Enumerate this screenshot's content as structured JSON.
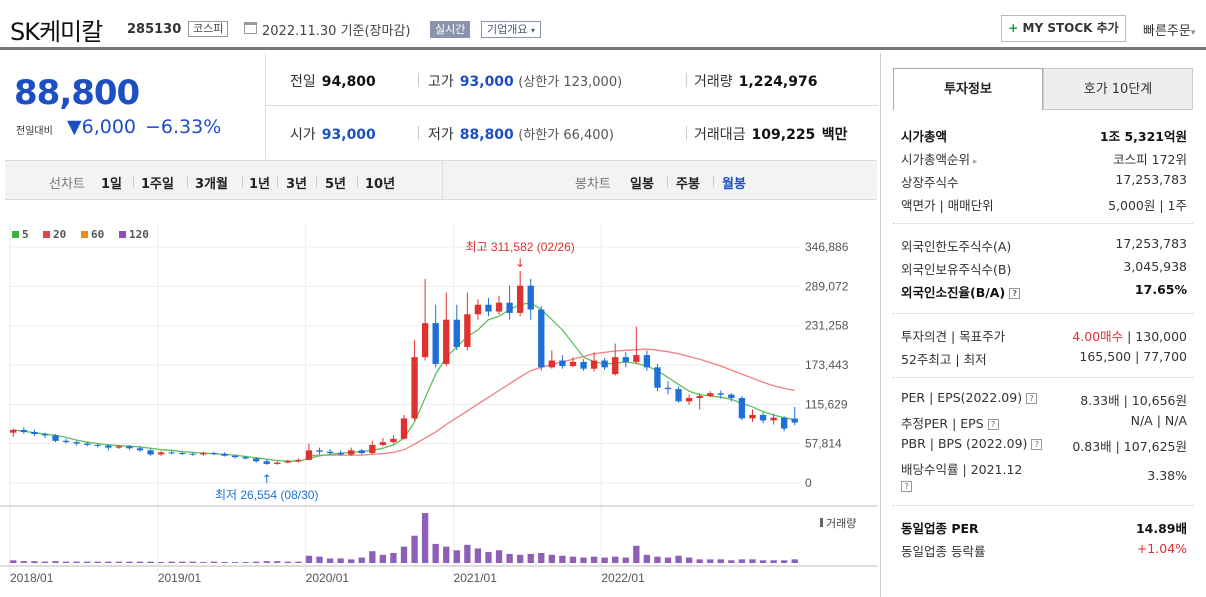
{
  "header": {
    "title": "SK케미칼",
    "code": "285130",
    "market": "코스피",
    "date": "2022.11.30 기준(장마감)",
    "realtime": "실시간",
    "overview": "기업개요",
    "mystock_label": "MY STOCK 추가",
    "quick_order": "빠른주문"
  },
  "price": {
    "current": "88,800",
    "compare_label": "전일대비",
    "change": "▼6,000",
    "change_pct": "−6.33%"
  },
  "quote": {
    "prev_label": "전일",
    "prev": "94,800",
    "high_label": "고가",
    "high": "93,000",
    "upper_limit": "(상한가 123,000)",
    "volume_label": "거래량",
    "volume": "1,224,976",
    "open_label": "시가",
    "open": "93,000",
    "low_label": "저가",
    "low": "88,800",
    "lower_limit": "(하한가 66,400)",
    "amount_label": "거래대금",
    "amount": "109,225",
    "amount_unit": "백만"
  },
  "periods": {
    "line_label": "선차트",
    "items": [
      "1일",
      "1주일",
      "3개월",
      "1년",
      "3년",
      "5년",
      "10년"
    ],
    "candle_label": "봉차트",
    "candle_items": [
      "일봉",
      "주봉",
      "월봉"
    ],
    "selected": "월봉"
  },
  "legend": [
    {
      "label": "5",
      "color": "#3cb33c"
    },
    {
      "label": "20",
      "color": "#e64545"
    },
    {
      "label": "60",
      "color": "#f08c1a"
    },
    {
      "label": "120",
      "color": "#8a4fc0"
    }
  ],
  "annotations": {
    "high": "최고 311,582 (02/26)",
    "low": "최저 26,554 (08/30)",
    "volume_label": "거래량"
  },
  "chart_data": {
    "type": "candlestick",
    "x_ticks": [
      "2018/01",
      "2019/01",
      "2020/01",
      "2021/01",
      "2022/01"
    ],
    "y_ticks": [
      0,
      57814,
      115629,
      173443,
      231258,
      289072,
      346886
    ],
    "ylim": [
      0,
      346886
    ],
    "colors": {
      "up": "#e03131",
      "down": "#1e6fd8",
      "ma5": "#5cc15c",
      "ma20": "#f08080",
      "volume": "#8e5fb8"
    },
    "candles": [
      [
        74000,
        78000,
        68000,
        80000
      ],
      [
        78000,
        75000,
        72000,
        82000
      ],
      [
        75000,
        72000,
        69000,
        78000
      ],
      [
        72000,
        70000,
        66000,
        74000
      ],
      [
        70000,
        62000,
        60000,
        72000
      ],
      [
        62000,
        60000,
        58000,
        65000
      ],
      [
        60000,
        58000,
        55000,
        62000
      ],
      [
        58000,
        56000,
        54000,
        60000
      ],
      [
        56000,
        55000,
        52000,
        58000
      ],
      [
        55000,
        52000,
        48000,
        57000
      ],
      [
        52000,
        54000,
        50000,
        56000
      ],
      [
        54000,
        51000,
        49000,
        56000
      ],
      [
        51000,
        48000,
        46000,
        54000
      ],
      [
        48000,
        42000,
        40000,
        50000
      ],
      [
        42000,
        45000,
        40000,
        47000
      ],
      [
        45000,
        44000,
        42000,
        48000
      ],
      [
        44000,
        43000,
        41000,
        46000
      ],
      [
        43000,
        42000,
        40000,
        45000
      ],
      [
        42000,
        44000,
        40000,
        46000
      ],
      [
        44000,
        43000,
        41000,
        46000
      ],
      [
        43000,
        40000,
        39000,
        45000
      ],
      [
        40000,
        38000,
        36000,
        42000
      ],
      [
        38000,
        36000,
        35000,
        40000
      ],
      [
        36000,
        32000,
        30000,
        38000
      ],
      [
        32000,
        28000,
        26554,
        34000
      ],
      [
        28000,
        30000,
        27000,
        32000
      ],
      [
        30000,
        32000,
        29000,
        34000
      ],
      [
        32000,
        34000,
        30000,
        36000
      ],
      [
        34000,
        48000,
        33000,
        58000
      ],
      [
        48000,
        46000,
        42000,
        52000
      ],
      [
        46000,
        44000,
        42000,
        50000
      ],
      [
        44000,
        42000,
        40000,
        48000
      ],
      [
        42000,
        48000,
        40000,
        52000
      ],
      [
        48000,
        44000,
        42000,
        50000
      ],
      [
        44000,
        56000,
        43000,
        62000
      ],
      [
        56000,
        60000,
        54000,
        66000
      ],
      [
        60000,
        65000,
        58000,
        70000
      ],
      [
        65000,
        95000,
        64000,
        100000
      ],
      [
        95000,
        185000,
        92000,
        210000
      ],
      [
        185000,
        235000,
        180000,
        300000
      ],
      [
        235000,
        175000,
        170000,
        262000
      ],
      [
        175000,
        240000,
        172000,
        280000
      ],
      [
        240000,
        200000,
        195000,
        262000
      ],
      [
        200000,
        248000,
        195000,
        280000
      ],
      [
        248000,
        262000,
        240000,
        270000
      ],
      [
        262000,
        252000,
        245000,
        272000
      ],
      [
        252000,
        265000,
        248000,
        275000
      ],
      [
        265000,
        250000,
        240000,
        290000
      ],
      [
        250000,
        290000,
        245000,
        311582
      ],
      [
        290000,
        255000,
        240000,
        300000
      ],
      [
        255000,
        170000,
        165000,
        260000
      ],
      [
        170000,
        180000,
        168000,
        195000
      ],
      [
        180000,
        172000,
        168000,
        188000
      ],
      [
        172000,
        178000,
        170000,
        185000
      ],
      [
        178000,
        168000,
        165000,
        182000
      ],
      [
        168000,
        180000,
        164000,
        192000
      ],
      [
        180000,
        170000,
        166000,
        184000
      ],
      [
        160000,
        185000,
        158000,
        205000
      ],
      [
        185000,
        178000,
        170000,
        192000
      ],
      [
        178000,
        188000,
        175000,
        230000
      ],
      [
        188000,
        170000,
        165000,
        195000
      ],
      [
        170000,
        140000,
        135000,
        175000
      ],
      [
        140000,
        138000,
        130000,
        150000
      ],
      [
        138000,
        120000,
        118000,
        142000
      ],
      [
        120000,
        125000,
        115000,
        130000
      ],
      [
        125000,
        128000,
        108000,
        132000
      ],
      [
        128000,
        132000,
        126000,
        135000
      ],
      [
        132000,
        130000,
        124000,
        136000
      ],
      [
        130000,
        125000,
        120000,
        132000
      ],
      [
        125000,
        95000,
        92000,
        128000
      ],
      [
        95000,
        100000,
        90000,
        108000
      ],
      [
        100000,
        92000,
        88000,
        104000
      ],
      [
        92000,
        96000,
        86000,
        102000
      ],
      [
        96000,
        80000,
        76000,
        98000
      ],
      [
        94800,
        88800,
        85000,
        112000
      ]
    ],
    "ma5": [
      78000,
      76000,
      74000,
      72000,
      70000,
      67000,
      63000,
      60000,
      58000,
      56000,
      55000,
      54000,
      53000,
      51000,
      49000,
      48000,
      46000,
      45000,
      44000,
      43000,
      42000,
      41000,
      39000,
      37000,
      35000,
      33000,
      32000,
      32000,
      36000,
      40000,
      42000,
      44000,
      45000,
      46000,
      48000,
      51000,
      56000,
      66000,
      90000,
      125000,
      160000,
      185000,
      200000,
      215000,
      225000,
      240000,
      245000,
      255000,
      262000,
      265000,
      255000,
      240000,
      225000,
      205000,
      185000,
      178000,
      175000,
      176000,
      178000,
      176000,
      172000,
      165000,
      155000,
      145000,
      135000,
      130000,
      128000,
      126000,
      123000,
      117000,
      112000,
      105000,
      100000,
      96000,
      93000
    ],
    "ma20": [
      null,
      null,
      null,
      null,
      null,
      null,
      null,
      null,
      null,
      null,
      null,
      null,
      null,
      null,
      null,
      null,
      null,
      null,
      null,
      null,
      null,
      null,
      null,
      null,
      null,
      null,
      null,
      null,
      40000,
      41000,
      41000,
      41000,
      41000,
      41000,
      42000,
      43000,
      45000,
      49000,
      57000,
      66000,
      75000,
      86000,
      96000,
      106000,
      116000,
      126000,
      136000,
      146000,
      156000,
      165000,
      170000,
      174000,
      178000,
      182000,
      186000,
      190000,
      192000,
      194000,
      195000,
      196000,
      197000,
      195000,
      193000,
      190000,
      186000,
      182000,
      177000,
      172000,
      166000,
      160000,
      154000,
      148000,
      143000,
      139000,
      136000
    ],
    "volumes": [
      6,
      4,
      4,
      3,
      4,
      3,
      3,
      3,
      3,
      3,
      3,
      3,
      3,
      3,
      2,
      3,
      3,
      3,
      2,
      3,
      2,
      2,
      2,
      3,
      4,
      4,
      3,
      3,
      16,
      14,
      10,
      10,
      8,
      12,
      26,
      18,
      22,
      36,
      60,
      110,
      42,
      36,
      28,
      40,
      32,
      24,
      28,
      20,
      18,
      20,
      22,
      18,
      16,
      14,
      12,
      14,
      12,
      14,
      12,
      38,
      18,
      14,
      12,
      16,
      12,
      8,
      8,
      8,
      6,
      8,
      8,
      6,
      6,
      6,
      8
    ]
  },
  "right_panel": {
    "tab_active": "투자정보",
    "tab_other": "호가 10단계",
    "group1": [
      {
        "k": "시가총액",
        "v": "1조 5,321억원",
        "bold": true
      },
      {
        "k": "시가총액순위",
        "v": "코스피 172위",
        "arrow": true
      },
      {
        "k": "상장주식수",
        "v": "17,253,783"
      },
      {
        "k": "액면가 | 매매단위",
        "v": "5,000원 | 1주"
      }
    ],
    "group2": [
      {
        "k": "외국인한도주식수(A)",
        "v": "17,253,783"
      },
      {
        "k": "외국인보유주식수(B)",
        "v": "3,045,938"
      },
      {
        "k": "외국인소진율(B/A)",
        "v": "17.65%",
        "bold": true,
        "help": true
      }
    ],
    "group3": [
      {
        "k": "투자의견 | 목표주가",
        "v1": "4.00매수",
        "v2": " | 130,000"
      },
      {
        "k": "52주최고 | 최저",
        "v": "165,500 | 77,700"
      }
    ],
    "group4": [
      {
        "k": "PER | EPS(2022.09)",
        "v": "8.33배 | 10,656원",
        "help": true
      },
      {
        "k": "추정PER | EPS",
        "v": "N/A | N/A",
        "help": true
      },
      {
        "k": "PBR | BPS (2022.09)",
        "v": "0.83배 | 107,625원",
        "help": true
      },
      {
        "k": "배당수익률 | 2021.12",
        "v": "3.38%",
        "help2": true
      }
    ],
    "group5": [
      {
        "k": "동일업종 PER",
        "v": "14.89배",
        "bold": true
      },
      {
        "k": "동일업종 등락률",
        "v": "+1.04%",
        "red": true
      }
    ]
  }
}
